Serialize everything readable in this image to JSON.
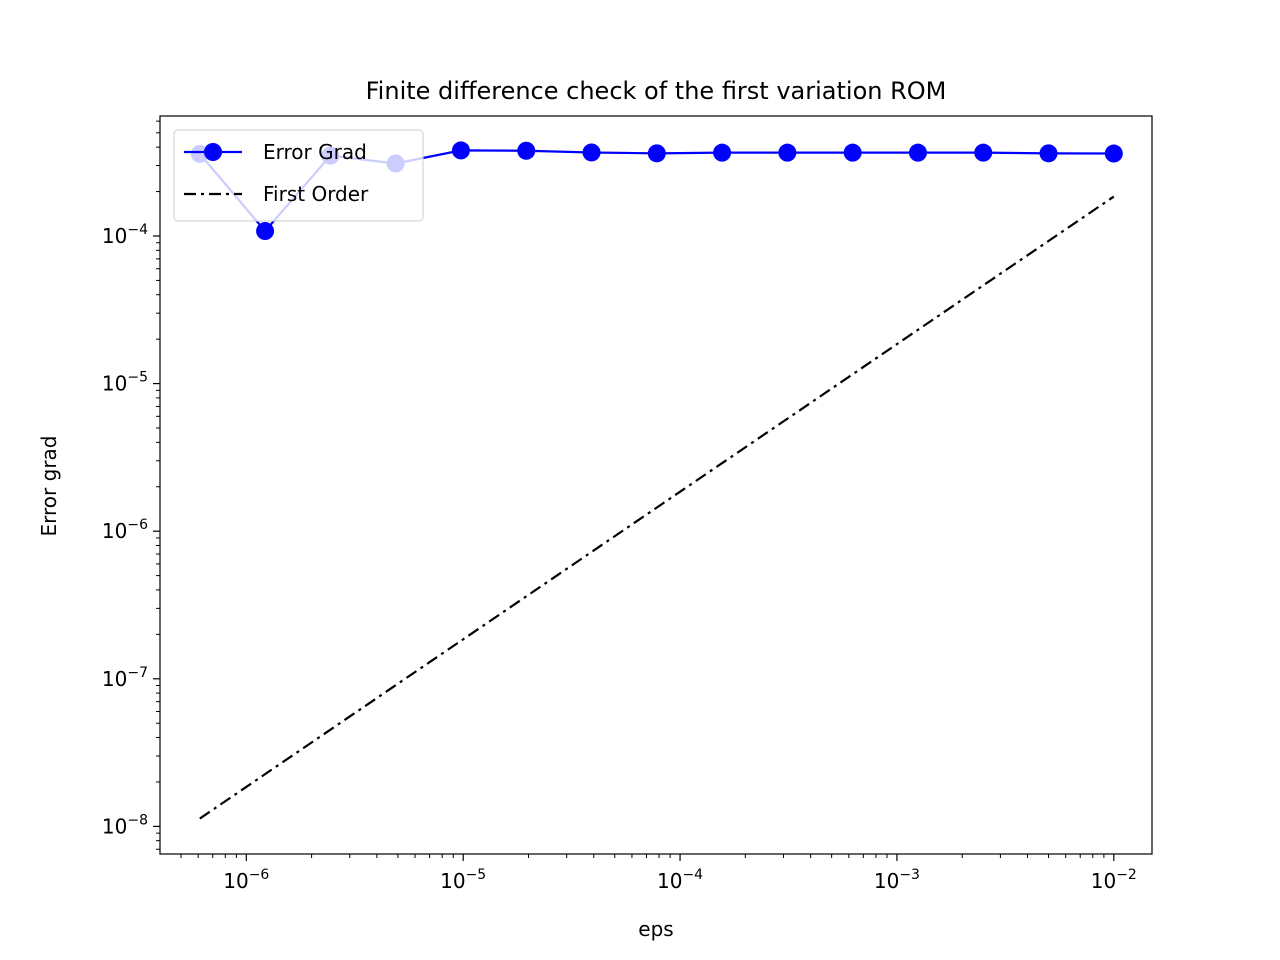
{
  "chart_data": {
    "type": "line",
    "title": "Finite difference check of the first variation ROM",
    "xlabel": "eps",
    "ylabel": "Error grad",
    "xscale": "log",
    "yscale": "log",
    "xlim": [
      4e-07,
      0.015
    ],
    "ylim": [
      6.5e-09,
      0.00065
    ],
    "x_ticks": [
      {
        "value": 1e-06,
        "base": "10",
        "exp": "−6"
      },
      {
        "value": 1e-05,
        "base": "10",
        "exp": "−5"
      },
      {
        "value": 0.0001,
        "base": "10",
        "exp": "−4"
      },
      {
        "value": 0.001,
        "base": "10",
        "exp": "−3"
      },
      {
        "value": 0.01,
        "base": "10",
        "exp": "−2"
      }
    ],
    "y_ticks": [
      {
        "value": 1e-08,
        "base": "10",
        "exp": "−8"
      },
      {
        "value": 1e-07,
        "base": "10",
        "exp": "−7"
      },
      {
        "value": 1e-06,
        "base": "10",
        "exp": "−6"
      },
      {
        "value": 1e-05,
        "base": "10",
        "exp": "−5"
      },
      {
        "value": 0.0001,
        "base": "10",
        "exp": "−4"
      }
    ],
    "grid": false,
    "legend_position": "upper left",
    "series": [
      {
        "name": "Error Grad",
        "color": "#0000ff",
        "line_style": "solid",
        "marker": "circle",
        "points": [
          {
            "x": 6.103515625e-07,
            "y": 0.00036
          },
          {
            "x": 1.220703125e-06,
            "y": 0.000108
          },
          {
            "x": 2.44140625e-06,
            "y": 0.00035
          },
          {
            "x": 4.8828125e-06,
            "y": 0.00031
          },
          {
            "x": 9.765625e-06,
            "y": 0.00038
          },
          {
            "x": 1.953125e-05,
            "y": 0.000378
          },
          {
            "x": 3.90625e-05,
            "y": 0.000368
          },
          {
            "x": 7.8125e-05,
            "y": 0.000363
          },
          {
            "x": 0.00015625,
            "y": 0.000367
          },
          {
            "x": 0.0003125,
            "y": 0.000367
          },
          {
            "x": 0.000625,
            "y": 0.000367
          },
          {
            "x": 0.00125,
            "y": 0.000367
          },
          {
            "x": 0.0025,
            "y": 0.000367
          },
          {
            "x": 0.005,
            "y": 0.000363
          },
          {
            "x": 0.01,
            "y": 0.000362
          }
        ]
      },
      {
        "name": "First Order",
        "color": "#000000",
        "line_style": "dashdot",
        "marker": "none",
        "points": [
          {
            "x": 6.103515625e-07,
            "y": 1.13e-08
          },
          {
            "x": 0.01,
            "y": 0.000185
          }
        ]
      }
    ]
  }
}
